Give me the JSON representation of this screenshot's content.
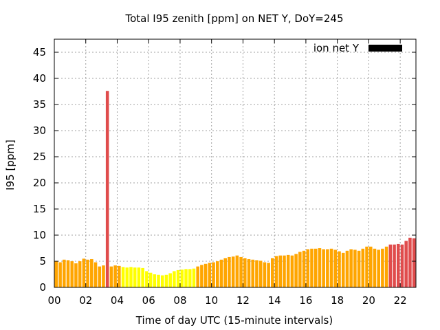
{
  "chart_data": {
    "type": "bar",
    "title": "Total I95 zenith [ppm] on NET Y, DoY=245",
    "xlabel": "Time of day UTC (15-minute intervals)",
    "ylabel": "I95 [ppm]",
    "ylim": [
      0,
      47.5
    ],
    "xlim": [
      0,
      23
    ],
    "grid": true,
    "yticks": [
      0,
      5,
      10,
      15,
      20,
      25,
      30,
      35,
      40,
      45
    ],
    "xticks": [
      {
        "value": 0,
        "label": "00"
      },
      {
        "value": 2,
        "label": "02"
      },
      {
        "value": 4,
        "label": "04"
      },
      {
        "value": 6,
        "label": "06"
      },
      {
        "value": 8,
        "label": "08"
      },
      {
        "value": 10,
        "label": "10"
      },
      {
        "value": 12,
        "label": "12"
      },
      {
        "value": 14,
        "label": "14"
      },
      {
        "value": 16,
        "label": "16"
      },
      {
        "value": 18,
        "label": "18"
      },
      {
        "value": 20,
        "label": "20"
      },
      {
        "value": 22,
        "label": "22"
      }
    ],
    "interval_hours": 0.25,
    "legend": {
      "label": "ion net Y",
      "color": "#000000",
      "position": "top-right"
    },
    "values": [
      5.0,
      4.8,
      5.3,
      5.2,
      5.0,
      4.6,
      5.0,
      5.5,
      5.3,
      5.4,
      4.8,
      4.0,
      4.2,
      37.6,
      4.0,
      4.2,
      4.1,
      3.9,
      3.8,
      3.9,
      3.8,
      3.8,
      3.7,
      3.1,
      2.8,
      2.5,
      2.4,
      2.3,
      2.4,
      2.7,
      3.1,
      3.3,
      3.4,
      3.5,
      3.5,
      3.6,
      4.0,
      4.3,
      4.5,
      4.7,
      4.8,
      5.0,
      5.3,
      5.6,
      5.8,
      5.9,
      6.1,
      5.8,
      5.6,
      5.4,
      5.3,
      5.2,
      5.1,
      4.8,
      4.7,
      5.6,
      6.0,
      6.1,
      6.1,
      6.2,
      6.1,
      6.4,
      6.8,
      7.0,
      7.3,
      7.4,
      7.4,
      7.5,
      7.3,
      7.3,
      7.4,
      7.2,
      6.9,
      6.6,
      7.0,
      7.3,
      7.2,
      7.0,
      7.4,
      7.8,
      7.8,
      7.4,
      7.2,
      7.4,
      7.8,
      8.2,
      8.2,
      8.3,
      8.2,
      8.9,
      9.5,
      9.4
    ],
    "color_bins": [
      {
        "min": 0,
        "max": 4,
        "color": "#ffff00"
      },
      {
        "min": 4,
        "max": 8,
        "color": "#ffa500"
      },
      {
        "min": 8,
        "max": 1000,
        "color": "#e04c4c"
      }
    ]
  }
}
